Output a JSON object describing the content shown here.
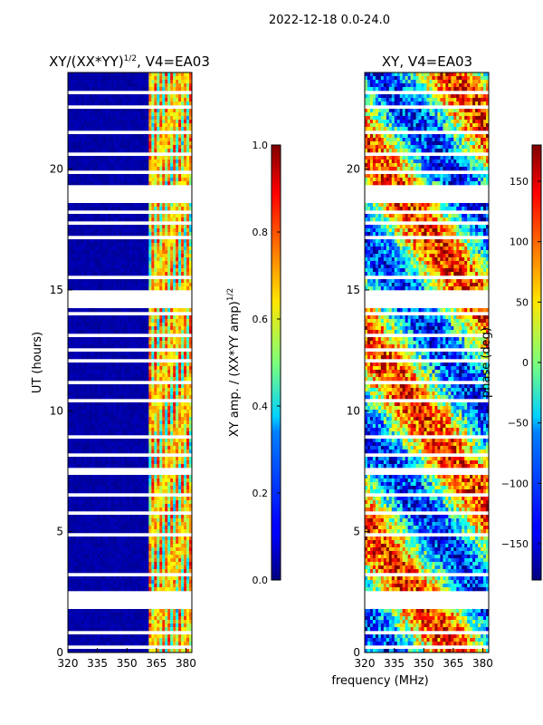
{
  "suptitle": "2022-12-18 0.0-24.0",
  "xlabel_shared": "frequency (MHz)",
  "chart_data": [
    {
      "type": "heatmap",
      "title_main": "XY/(XX*YY)",
      "title_sup": "1/2",
      "title_tail": ", V4=EA03",
      "xlabel": "",
      "ylabel": "UT (hours)",
      "xlim": [
        320,
        383
      ],
      "ylim": [
        0,
        24
      ],
      "xticks": [
        320,
        335,
        350,
        365,
        380
      ],
      "yticks": [
        0,
        5,
        10,
        15,
        20
      ],
      "active_band_MHz": [
        361,
        383
      ],
      "colorbar": {
        "label_main": "XY amp. / (XX*YY amp)",
        "label_sup": "1/2",
        "range": [
          0.0,
          1.0
        ],
        "ticks": [
          "0.0",
          "0.2",
          "0.4",
          "0.6",
          "0.8",
          "1.0"
        ],
        "colormap": "jet"
      }
    },
    {
      "type": "heatmap",
      "title_main": "XY, V4=EA03",
      "xlabel": "frequency (MHz)",
      "ylabel": "",
      "xlim": [
        320,
        383
      ],
      "ylim": [
        0,
        24
      ],
      "xticks": [
        320,
        335,
        350,
        365,
        380
      ],
      "yticks": [
        0,
        5,
        10,
        15,
        20
      ],
      "colorbar": {
        "label": "phase (deg)",
        "range": [
          -180,
          180
        ],
        "ticks": [
          "−150",
          "−100",
          "−50",
          "0",
          "50",
          "100",
          "150"
        ],
        "colormap": "jet"
      }
    }
  ],
  "flagged_gaps_hours": [
    [
      2.6,
      1.8
    ],
    [
      7.6,
      7.4
    ],
    [
      15.0,
      14.25
    ],
    [
      19.4,
      18.6
    ],
    [
      13.25,
      13.0
    ],
    [
      11.2,
      11.05
    ],
    [
      10.45,
      10.3
    ],
    [
      5.9,
      5.75
    ],
    [
      8.95,
      8.85
    ],
    [
      23.3,
      23.15
    ],
    [
      22.7,
      22.55
    ],
    [
      17.2,
      17.1
    ],
    [
      16.4,
      16.3
    ],
    [
      14.05,
      13.95
    ],
    [
      20.7,
      20.55
    ],
    [
      12.1,
      12.0
    ],
    [
      9.5,
      9.4
    ],
    [
      6.6,
      6.5
    ],
    [
      4.9,
      4.8
    ],
    [
      3.3,
      3.2
    ],
    [
      0.9,
      0.8
    ],
    [
      0.3,
      0.2
    ],
    [
      18.3,
      18.2
    ],
    [
      17.8,
      17.7
    ],
    [
      21.6,
      21.5
    ],
    [
      19.9,
      19.8
    ],
    [
      15.6,
      15.5
    ],
    [
      12.6,
      12.5
    ],
    [
      8.2,
      8.1
    ],
    [
      1.4,
      1.3
    ]
  ]
}
